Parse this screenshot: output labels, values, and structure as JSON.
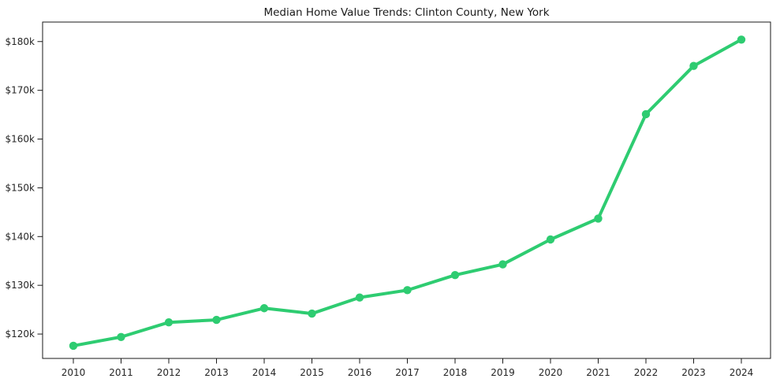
{
  "chart_data": {
    "type": "line",
    "title": "Median Home Value Trends: Clinton County, New York",
    "categories": [
      "2010",
      "2011",
      "2012",
      "2013",
      "2014",
      "2015",
      "2016",
      "2017",
      "2018",
      "2019",
      "2020",
      "2021",
      "2022",
      "2023",
      "2024"
    ],
    "values": [
      117.6,
      119.4,
      122.4,
      122.9,
      125.3,
      124.2,
      127.5,
      129.0,
      132.1,
      134.3,
      139.4,
      143.7,
      165.1,
      175.0,
      180.4
    ],
    "values_unit": "thousand_dollars",
    "xlabel": "",
    "ylabel": "",
    "y_tick_values": [
      120,
      130,
      140,
      150,
      160,
      170,
      180
    ],
    "y_tick_labels": [
      "$120k",
      "$130k",
      "$140k",
      "$150k",
      "$160k",
      "$170k",
      "$180k"
    ],
    "ylim": [
      115,
      184
    ],
    "xlim_padding_years": 0.65,
    "grid": false,
    "legend": "none",
    "line_color": "#2ecc71",
    "marker": "circle",
    "axis_color": "#1a1a1a"
  }
}
